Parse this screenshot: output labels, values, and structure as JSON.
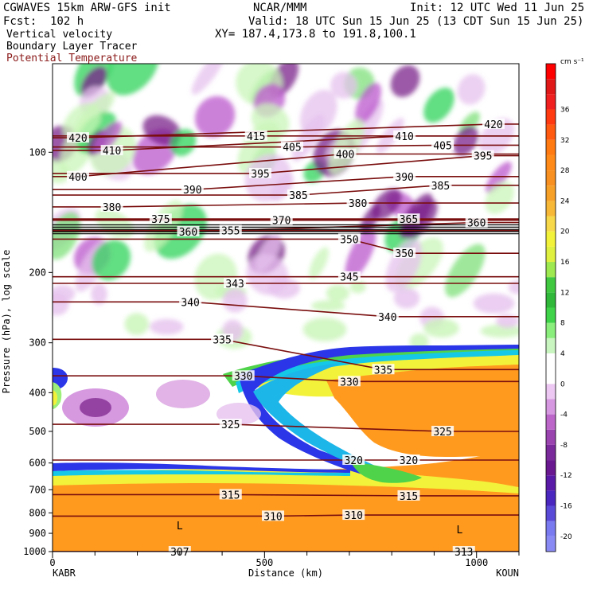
{
  "header": {
    "title": "CGWAVES 15km ARW-GFS init",
    "fcst": "Fcst:  102 h",
    "field1": "Vertical velocity",
    "field2": "Boundary Layer Tracer",
    "field3": "Potential Temperature",
    "source": "NCAR/MMM",
    "init": "Init: 12 UTC Wed 11 Jun 25",
    "valid": "Valid: 18 UTC Sun 15 Jun 25 (13 CDT Sun 15 Jun 25)",
    "xy": "XY= 187.4,173.8 to 191.8,100.1"
  },
  "colors": {
    "theta_line": "#7a0e0e",
    "field3_text": "#8b1a1a"
  },
  "chart_data": {
    "type": "heatmap",
    "xlabel": "Distance (km)",
    "ylabel": "Pressure (hPa), log scale",
    "x_ticks": [
      "0",
      "500",
      "1000"
    ],
    "x_tick_values": [
      0,
      500,
      1000
    ],
    "x_end_labels": [
      "KABR",
      "KOUN"
    ],
    "xlim": [
      0,
      1100
    ],
    "y_scale": "log",
    "ylim": [
      1000,
      60
    ],
    "y_ticks": [
      "100",
      "200",
      "300",
      "400",
      "500",
      "600",
      "700",
      "800",
      "900",
      "1000"
    ],
    "y_tick_values": [
      100,
      200,
      300,
      400,
      500,
      600,
      700,
      800,
      900,
      1000
    ],
    "colorbar": {
      "unit": "cm s⁻¹",
      "levels": [
        -20,
        -18,
        -16,
        -14,
        -12,
        -10,
        -8,
        -6,
        -4,
        -2,
        0,
        2,
        4,
        6,
        8,
        10,
        12,
        14,
        16,
        18,
        20,
        22,
        24,
        26,
        28,
        30,
        32,
        34,
        36,
        38,
        40,
        42
      ],
      "labels": [
        "36",
        "32",
        "28",
        "24",
        "20",
        "16",
        "12",
        "8",
        "4",
        "0",
        "-4",
        "-8",
        "-12",
        "-16",
        "-20"
      ],
      "label_values": [
        36,
        32,
        28,
        24,
        20,
        16,
        12,
        8,
        4,
        0,
        -4,
        -8,
        -12,
        -16,
        -20
      ]
    },
    "theta_contours": {
      "name": "Potential Temperature",
      "labels": [
        {
          "text": "420",
          "x": 60,
          "p": 92
        },
        {
          "text": "410",
          "x": 140,
          "p": 99
        },
        {
          "text": "415",
          "x": 480,
          "p": 91
        },
        {
          "text": "405",
          "x": 565,
          "p": 97
        },
        {
          "text": "400",
          "x": 690,
          "p": 101
        },
        {
          "text": "410",
          "x": 830,
          "p": 91
        },
        {
          "text": "405",
          "x": 920,
          "p": 96
        },
        {
          "text": "420",
          "x": 1040,
          "p": 85
        },
        {
          "text": "395",
          "x": 1015,
          "p": 102
        },
        {
          "text": "400",
          "x": 60,
          "p": 115
        },
        {
          "text": "395",
          "x": 490,
          "p": 113
        },
        {
          "text": "390",
          "x": 830,
          "p": 115
        },
        {
          "text": "385",
          "x": 915,
          "p": 121
        },
        {
          "text": "390",
          "x": 330,
          "p": 124
        },
        {
          "text": "385",
          "x": 580,
          "p": 128
        },
        {
          "text": "380",
          "x": 720,
          "p": 134
        },
        {
          "text": "380",
          "x": 140,
          "p": 137
        },
        {
          "text": "375",
          "x": 255,
          "p": 147
        },
        {
          "text": "370",
          "x": 540,
          "p": 148
        },
        {
          "text": "365",
          "x": 840,
          "p": 147
        },
        {
          "text": "360",
          "x": 320,
          "p": 158
        },
        {
          "text": "355",
          "x": 420,
          "p": 157
        },
        {
          "text": "350",
          "x": 700,
          "p": 165
        },
        {
          "text": "350",
          "x": 830,
          "p": 179
        },
        {
          "text": "360",
          "x": 1000,
          "p": 150
        },
        {
          "text": "345",
          "x": 700,
          "p": 205
        },
        {
          "text": "343",
          "x": 430,
          "p": 213
        },
        {
          "text": "340",
          "x": 325,
          "p": 237
        },
        {
          "text": "340",
          "x": 790,
          "p": 258
        },
        {
          "text": "335",
          "x": 400,
          "p": 294
        },
        {
          "text": "335",
          "x": 780,
          "p": 350
        },
        {
          "text": "330",
          "x": 450,
          "p": 363
        },
        {
          "text": "330",
          "x": 700,
          "p": 375
        },
        {
          "text": "325",
          "x": 420,
          "p": 480
        },
        {
          "text": "325",
          "x": 920,
          "p": 500
        },
        {
          "text": "320",
          "x": 710,
          "p": 590
        },
        {
          "text": "320",
          "x": 840,
          "p": 590
        },
        {
          "text": "315",
          "x": 420,
          "p": 720
        },
        {
          "text": "315",
          "x": 840,
          "p": 725
        },
        {
          "text": "310",
          "x": 520,
          "p": 815
        },
        {
          "text": "310",
          "x": 710,
          "p": 810
        },
        {
          "text": "307",
          "x": 300,
          "p": 1000
        },
        {
          "text": "313",
          "x": 970,
          "p": 1000
        }
      ],
      "low_markers": [
        {
          "text": "L",
          "x": 300,
          "p": 860
        },
        {
          "text": "L",
          "x": 960,
          "p": 880
        }
      ]
    }
  }
}
